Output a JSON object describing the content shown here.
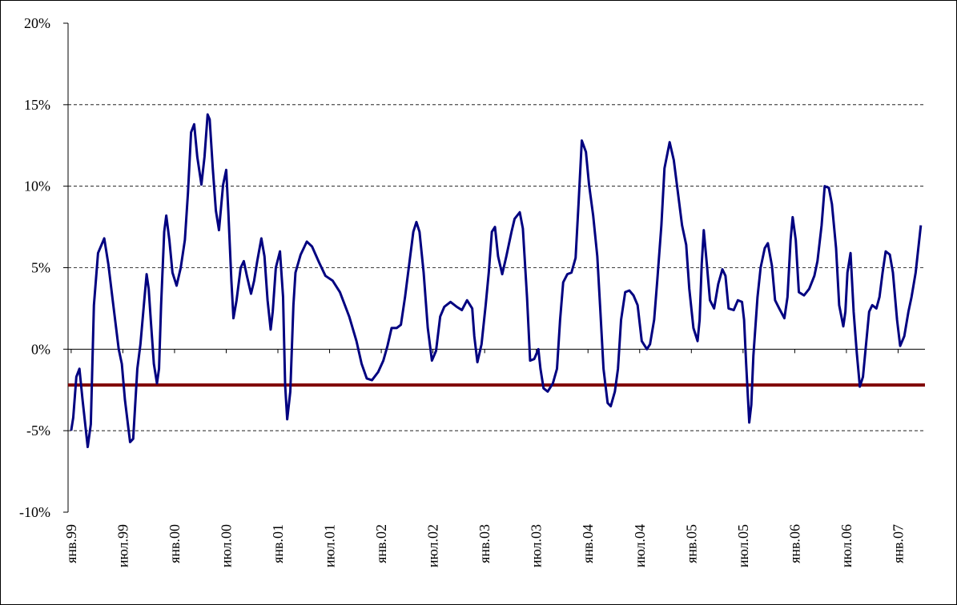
{
  "chart_data": {
    "type": "line",
    "xlim": [
      1998.97,
      2007.26
    ],
    "ylim": [
      -10,
      20
    ],
    "yticks": [
      {
        "value": -10,
        "label": "-10%"
      },
      {
        "value": -5,
        "label": "-5%"
      },
      {
        "value": 0,
        "label": "0%"
      },
      {
        "value": 5,
        "label": "5%"
      },
      {
        "value": 10,
        "label": "10%"
      },
      {
        "value": 15,
        "label": "15%"
      },
      {
        "value": 20,
        "label": "20%"
      }
    ],
    "xticks": [
      {
        "value": 1999,
        "label": "янв.99"
      },
      {
        "value": 1999.5,
        "label": "июл.99"
      },
      {
        "value": 2000,
        "label": "янв.00"
      },
      {
        "value": 2000.5,
        "label": "июл.00"
      },
      {
        "value": 2001,
        "label": "янв.01"
      },
      {
        "value": 2001.5,
        "label": "июл.01"
      },
      {
        "value": 2002,
        "label": "янв.02"
      },
      {
        "value": 2002.5,
        "label": "июл.02"
      },
      {
        "value": 2003,
        "label": "янв.03"
      },
      {
        "value": 2003.5,
        "label": "июл.03"
      },
      {
        "value": 2004,
        "label": "янв.04"
      },
      {
        "value": 2004.5,
        "label": "июл.04"
      },
      {
        "value": 2005,
        "label": "янв.05"
      },
      {
        "value": 2005.5,
        "label": "июл.05"
      },
      {
        "value": 2006,
        "label": "янв.06"
      },
      {
        "value": 2006.5,
        "label": "июл.06"
      },
      {
        "value": 2007,
        "label": "янв.07"
      }
    ],
    "grid": true,
    "reference_line": {
      "value": -2.2,
      "color": "#800000"
    },
    "series": [
      {
        "color": "#000080",
        "x": [
          1999.0,
          1999.02,
          1999.05,
          1999.08,
          1999.11,
          1999.16,
          1999.19,
          1999.22,
          1999.26,
          1999.32,
          1999.36,
          1999.4,
          1999.46,
          1999.49,
          1999.52,
          1999.57,
          1999.6,
          1999.64,
          1999.67,
          1999.71,
          1999.73,
          1999.75,
          1999.77,
          1999.8,
          1999.83,
          1999.85,
          1999.87,
          1999.9,
          1999.92,
          1999.95,
          1999.98,
          2000.02,
          2000.06,
          2000.1,
          2000.13,
          2000.16,
          2000.19,
          2000.22,
          2000.26,
          2000.29,
          2000.32,
          2000.34,
          2000.37,
          2000.4,
          2000.43,
          2000.47,
          2000.5,
          2000.52,
          2000.55,
          2000.57,
          2000.6,
          2000.64,
          2000.67,
          2000.7,
          2000.74,
          2000.77,
          2000.8,
          2000.84,
          2000.87,
          2000.9,
          2000.93,
          2000.95,
          2000.98,
          2001.02,
          2001.05,
          2001.07,
          2001.09,
          2001.12,
          2001.15,
          2001.17,
          2001.22,
          2001.28,
          2001.33,
          2001.4,
          2001.46,
          2001.53,
          2001.6,
          2001.69,
          2001.76,
          2001.81,
          2001.86,
          2001.91,
          2001.97,
          2002.02,
          2002.06,
          2002.1,
          2002.15,
          2002.19,
          2002.23,
          2002.27,
          2002.31,
          2002.34,
          2002.37,
          2002.41,
          2002.45,
          2002.49,
          2002.53,
          2002.57,
          2002.61,
          2002.67,
          2002.73,
          2002.78,
          2002.83,
          2002.88,
          2002.9,
          2002.93,
          2002.97,
          2003.01,
          2003.04,
          2003.07,
          2003.1,
          2003.13,
          2003.17,
          2003.21,
          2003.26,
          2003.29,
          2003.34,
          2003.37,
          2003.41,
          2003.44,
          2003.48,
          2003.52,
          2003.54,
          2003.57,
          2003.61,
          2003.66,
          2003.7,
          2003.73,
          2003.76,
          2003.8,
          2003.84,
          2003.88,
          2003.91,
          2003.94,
          2003.98,
          2004.01,
          2004.05,
          2004.09,
          2004.12,
          2004.15,
          2004.19,
          2004.22,
          2004.26,
          2004.29,
          2004.32,
          2004.36,
          2004.4,
          2004.44,
          2004.48,
          2004.52,
          2004.57,
          2004.6,
          2004.64,
          2004.67,
          2004.71,
          2004.74,
          2004.79,
          2004.83,
          2004.87,
          2004.91,
          2004.95,
          2004.98,
          2005.02,
          2005.06,
          2005.08,
          2005.1,
          2005.12,
          2005.15,
          2005.18,
          2005.22,
          2005.26,
          2005.3,
          2005.33,
          2005.36,
          2005.41,
          2005.45,
          2005.49,
          2005.51,
          2005.53,
          2005.56,
          2005.58,
          2005.6,
          2005.64,
          2005.67,
          2005.71,
          2005.74,
          2005.78,
          2005.81,
          2005.85,
          2005.9,
          2005.93,
          2005.96,
          2005.98,
          2006.01,
          2006.04,
          2006.09,
          2006.14,
          2006.19,
          2006.22,
          2006.26,
          2006.29,
          2006.33,
          2006.36,
          2006.4,
          2006.43,
          2006.47,
          2006.49,
          2006.51,
          2006.54,
          2006.57,
          2006.6,
          2006.63,
          2006.66,
          2006.69,
          2006.72,
          2006.75,
          2006.79,
          2006.82,
          2006.85,
          2006.88,
          2006.92,
          2006.95,
          2006.99,
          2007.02,
          2007.06,
          2007.1,
          2007.13,
          2007.17,
          2007.22
        ],
        "values": [
          -5.0,
          -4.2,
          -1.7,
          -1.2,
          -3.1,
          -6.0,
          -4.6,
          2.7,
          5.9,
          6.8,
          5.2,
          3.1,
          0.0,
          -0.9,
          -3.1,
          -5.7,
          -5.5,
          -1.2,
          0.3,
          3.2,
          4.6,
          3.7,
          1.8,
          -0.9,
          -2.1,
          -1.2,
          2.7,
          7.2,
          8.2,
          6.7,
          4.7,
          3.9,
          5.0,
          6.7,
          9.6,
          13.3,
          13.8,
          11.8,
          10.1,
          11.8,
          14.4,
          14.1,
          11.1,
          8.5,
          7.3,
          10.1,
          11.0,
          8.5,
          4.2,
          1.9,
          3.0,
          5.0,
          5.4,
          4.5,
          3.4,
          4.2,
          5.4,
          6.8,
          5.7,
          3.0,
          1.2,
          2.3,
          5.0,
          6.0,
          3.2,
          -2.2,
          -4.3,
          -2.6,
          2.7,
          4.7,
          5.8,
          6.6,
          6.3,
          5.3,
          4.5,
          4.2,
          3.5,
          2.0,
          0.5,
          -0.9,
          -1.8,
          -1.9,
          -1.4,
          -0.7,
          0.2,
          1.3,
          1.3,
          1.5,
          3.2,
          5.2,
          7.2,
          7.8,
          7.2,
          4.7,
          1.3,
          -0.7,
          -0.1,
          2.0,
          2.6,
          2.9,
          2.6,
          2.4,
          3.0,
          2.5,
          0.8,
          -0.8,
          0.3,
          2.7,
          4.7,
          7.2,
          7.5,
          5.7,
          4.6,
          5.7,
          7.2,
          8.0,
          8.4,
          7.4,
          3.2,
          -0.7,
          -0.6,
          0.0,
          -1.2,
          -2.4,
          -2.6,
          -2.1,
          -1.2,
          1.8,
          4.1,
          4.6,
          4.7,
          5.6,
          9.1,
          12.8,
          12.1,
          10.1,
          8.2,
          5.7,
          2.3,
          -1.2,
          -3.3,
          -3.5,
          -2.6,
          -1.2,
          1.8,
          3.5,
          3.6,
          3.3,
          2.7,
          0.5,
          0.0,
          0.3,
          1.8,
          4.2,
          7.6,
          11.1,
          12.7,
          11.6,
          9.6,
          7.6,
          6.4,
          3.7,
          1.3,
          0.5,
          1.8,
          5.2,
          7.3,
          5.2,
          3.0,
          2.5,
          4.0,
          4.9,
          4.5,
          2.5,
          2.4,
          3.0,
          2.9,
          1.8,
          -0.9,
          -4.5,
          -3.4,
          -0.4,
          3.2,
          5.0,
          6.2,
          6.5,
          5.1,
          3.0,
          2.5,
          1.9,
          3.2,
          6.7,
          8.1,
          6.7,
          3.5,
          3.3,
          3.7,
          4.5,
          5.4,
          7.6,
          10.0,
          9.9,
          8.9,
          6.2,
          2.7,
          1.4,
          2.3,
          4.7,
          5.9,
          2.3,
          -0.2,
          -2.3,
          -1.7,
          0.3,
          2.3,
          2.7,
          2.5,
          3.2,
          4.7,
          6.0,
          5.8,
          4.7,
          1.8,
          0.2,
          0.8,
          2.3,
          3.2,
          4.7,
          7.6
        ]
      }
    ]
  }
}
